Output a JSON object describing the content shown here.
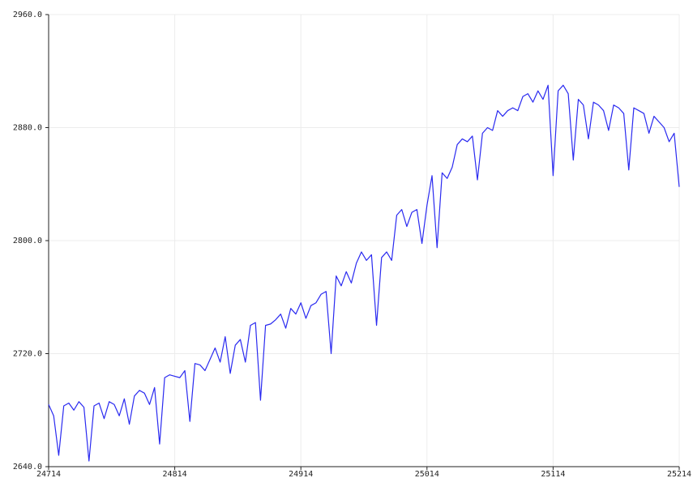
{
  "chart_data": {
    "type": "line",
    "xlim": [
      24714,
      25214
    ],
    "xticks": [
      24714,
      24814,
      24914,
      25014,
      25114,
      25214
    ],
    "ylim": [
      2640,
      2960
    ],
    "yticks": [
      {
        "value": 2640,
        "label": "2640.0"
      },
      {
        "value": 2720,
        "label": "2720.0"
      },
      {
        "value": 2800,
        "label": "2800.0"
      },
      {
        "value": 2880,
        "label": "2880.0"
      },
      {
        "value": 2960,
        "label": "2960.0"
      }
    ],
    "grid": true,
    "x": [
      24714,
      24718,
      24722,
      24726,
      24730,
      24734,
      24738,
      24742,
      24746,
      24750,
      24754,
      24758,
      24762,
      24766,
      24770,
      24774,
      24778,
      24782,
      24786,
      24790,
      24794,
      24798,
      24802,
      24806,
      24810,
      24814,
      24818,
      24822,
      24826,
      24830,
      24834,
      24838,
      24842,
      24846,
      24850,
      24854,
      24858,
      24862,
      24866,
      24870,
      24874,
      24878,
      24882,
      24886,
      24890,
      24894,
      24898,
      24902,
      24906,
      24910,
      24914,
      24918,
      24922,
      24926,
      24930,
      24934,
      24938,
      24942,
      24946,
      24950,
      24954,
      24958,
      24962,
      24966,
      24970,
      24974,
      24978,
      24982,
      24986,
      24990,
      24994,
      24998,
      25002,
      25006,
      25010,
      25014,
      25018,
      25022,
      25026,
      25030,
      25034,
      25038,
      25042,
      25046,
      25050,
      25054,
      25058,
      25062,
      25066,
      25070,
      25074,
      25078,
      25082,
      25086,
      25090,
      25094,
      25098,
      25102,
      25106,
      25110,
      25114,
      25118,
      25122,
      25126,
      25130,
      25134,
      25138,
      25142,
      25146,
      25150,
      25154,
      25158,
      25162,
      25166,
      25170,
      25174,
      25178,
      25182,
      25186,
      25190,
      25194,
      25198,
      25202,
      25206,
      25210,
      25214
    ],
    "series": [
      {
        "color": "#2a2af0",
        "values": [
          2684,
          2676,
          2648,
          2683,
          2685,
          2680,
          2686,
          2682,
          2644,
          2683,
          2685,
          2674,
          2686,
          2684,
          2676,
          2688,
          2670,
          2690,
          2694,
          2692,
          2684,
          2696,
          2656,
          2703,
          2705,
          2704,
          2703,
          2708,
          2672,
          2713,
          2712,
          2708,
          2716,
          2724,
          2714,
          2732,
          2706,
          2726,
          2730,
          2714,
          2740,
          2742,
          2687,
          2740,
          2741,
          2744,
          2748,
          2738,
          2752,
          2748,
          2756,
          2745,
          2754,
          2756,
          2762,
          2764,
          2720,
          2775,
          2768,
          2778,
          2770,
          2784,
          2792,
          2786,
          2790,
          2740,
          2788,
          2792,
          2786,
          2818,
          2822,
          2810,
          2820,
          2822,
          2798,
          2825,
          2846,
          2795,
          2848,
          2844,
          2852,
          2868,
          2872,
          2870,
          2874,
          2843,
          2876,
          2880,
          2878,
          2892,
          2888,
          2892,
          2894,
          2892,
          2902,
          2904,
          2898,
          2906,
          2900,
          2910,
          2846,
          2906,
          2910,
          2904,
          2857,
          2900,
          2896,
          2872,
          2898,
          2896,
          2892,
          2878,
          2896,
          2894,
          2890,
          2850,
          2894,
          2892,
          2890,
          2876,
          2888,
          2884,
          2880,
          2870,
          2876,
          2838
        ]
      }
    ]
  }
}
